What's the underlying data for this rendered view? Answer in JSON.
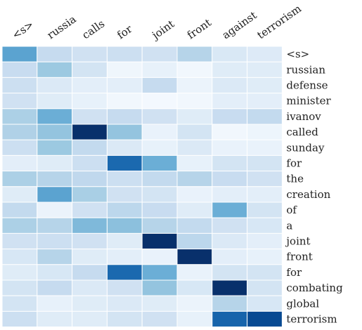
{
  "chart_data": {
    "type": "heatmap",
    "title": "",
    "xlabel": "",
    "ylabel": "",
    "x_labels": [
      "<s>",
      "russia",
      "calls",
      "for",
      "joint",
      "front",
      "against",
      "terrorism"
    ],
    "y_labels": [
      "<s>",
      "russian",
      "defense",
      "minister",
      "ivanov",
      "called",
      "sunday",
      "for",
      "the",
      "creation",
      "of",
      "a",
      "joint",
      "front",
      "for",
      "combating",
      "global",
      "terrorism"
    ],
    "colormap": "Blues",
    "vmin": 0,
    "vmax": 1,
    "values": [
      [
        0.55,
        0.25,
        0.2,
        0.22,
        0.2,
        0.3,
        0.15,
        0.13
      ],
      [
        0.24,
        0.38,
        0.18,
        0.04,
        0.08,
        0.03,
        0.12,
        0.12
      ],
      [
        0.22,
        0.14,
        0.1,
        0.1,
        0.25,
        0.06,
        0.14,
        0.12
      ],
      [
        0.2,
        0.12,
        0.08,
        0.03,
        0.02,
        0.03,
        0.1,
        0.1
      ],
      [
        0.33,
        0.5,
        0.2,
        0.25,
        0.2,
        0.12,
        0.24,
        0.26
      ],
      [
        0.32,
        0.4,
        1.0,
        0.4,
        0.07,
        0.18,
        0.03,
        0.05
      ],
      [
        0.22,
        0.38,
        0.26,
        0.14,
        0.08,
        0.14,
        0.07,
        0.07
      ],
      [
        0.1,
        0.12,
        0.22,
        0.78,
        0.5,
        0.08,
        0.18,
        0.18
      ],
      [
        0.33,
        0.3,
        0.27,
        0.22,
        0.26,
        0.3,
        0.24,
        0.2
      ],
      [
        0.12,
        0.55,
        0.34,
        0.2,
        0.18,
        0.07,
        0.1,
        0.1
      ],
      [
        0.26,
        0.06,
        0.2,
        0.28,
        0.24,
        0.12,
        0.5,
        0.18
      ],
      [
        0.33,
        0.3,
        0.45,
        0.42,
        0.3,
        0.26,
        0.2,
        0.16
      ],
      [
        0.2,
        0.22,
        0.2,
        0.12,
        1.0,
        0.28,
        0.14,
        0.1
      ],
      [
        0.16,
        0.3,
        0.12,
        0.1,
        0.07,
        1.0,
        0.1,
        0.08
      ],
      [
        0.12,
        0.16,
        0.25,
        0.78,
        0.5,
        0.07,
        0.18,
        0.18
      ],
      [
        0.18,
        0.25,
        0.14,
        0.2,
        0.4,
        0.16,
        1.0,
        0.18
      ],
      [
        0.18,
        0.08,
        0.12,
        0.14,
        0.12,
        0.06,
        0.3,
        0.16
      ],
      [
        0.22,
        0.12,
        0.12,
        0.18,
        0.2,
        0.08,
        0.8,
        0.9
      ]
    ]
  }
}
